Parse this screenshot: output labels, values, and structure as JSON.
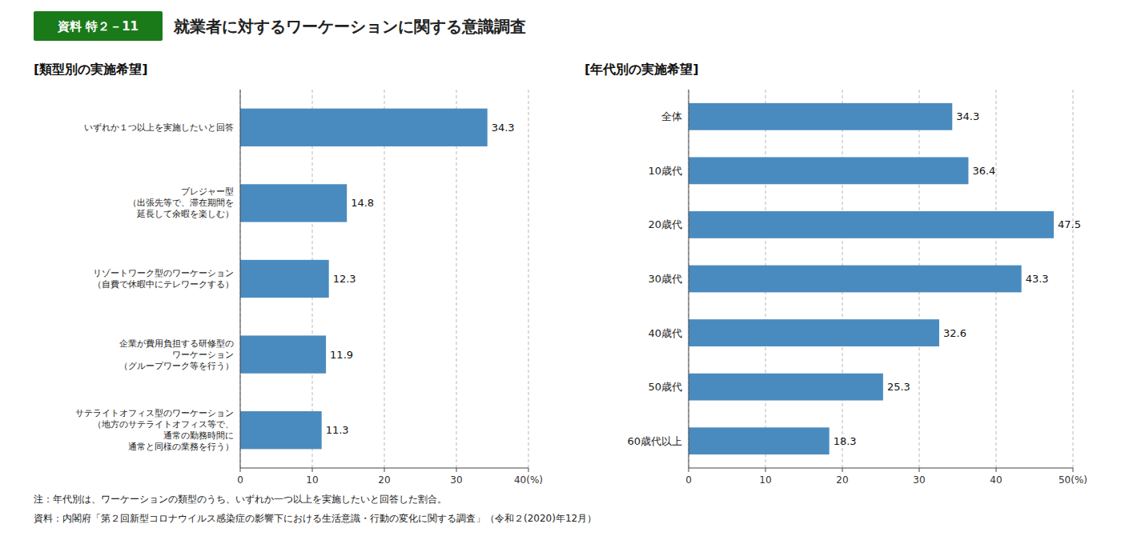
{
  "title": "就業者に対するワーケーションに関する意識調査",
  "title_label": "資料 特２－11",
  "annotations": [
    "注：年代別は、ワーケーションの類型のうち、いずれか一つ以上を実施したいと回答した割合。",
    "資料：内閣府「第２回新型コロナウイルス感染症の影響下における生活意識・行動の変化に関する調査」（令和２(2020)年12月）"
  ],
  "chart_data": [
    {
      "type": "bar",
      "orientation": "horizontal",
      "title": "[類型別の実施希望]",
      "categories": [
        "いずれか１つ以上を実施したいと回答",
        "ブレジャー型\n（出張先等で、滞在期間を\n延長して余暇を楽しむ）",
        "リゾートワーク型のワーケーション\n（自費で休暇中にテレワークする）",
        "企業が費用負担する研修型の\nワーケーション\n（グループワーク等を行う）",
        "サテライトオフィス型のワーケーション\n（地方のサテライトオフィス等で、\n通常の勤務時間に\n通常と同様の業務を行う）"
      ],
      "values": [
        34.3,
        14.8,
        12.3,
        11.9,
        11.3
      ],
      "color": "#4a8bbf",
      "xlim": [
        0,
        40
      ],
      "xticks": [
        0,
        10,
        20,
        30,
        {
          "value": 40,
          "label": "40(%)"
        }
      ],
      "grid": true,
      "data_labels": true
    },
    {
      "type": "bar",
      "orientation": "horizontal",
      "title": "[年代別の実施希望]",
      "categories": [
        "全体",
        "10歳代",
        "20歳代",
        "30歳代",
        "40歳代",
        "50歳代",
        "60歳代以上"
      ],
      "values": [
        34.3,
        36.4,
        47.5,
        43.3,
        32.6,
        25.3,
        18.3
      ],
      "color": "#4a8bbf",
      "xlim": [
        0,
        50
      ],
      "xticks": [
        0,
        10,
        20,
        30,
        40,
        {
          "value": 50,
          "label": "50(%)"
        }
      ],
      "grid": true,
      "data_labels": true
    }
  ]
}
